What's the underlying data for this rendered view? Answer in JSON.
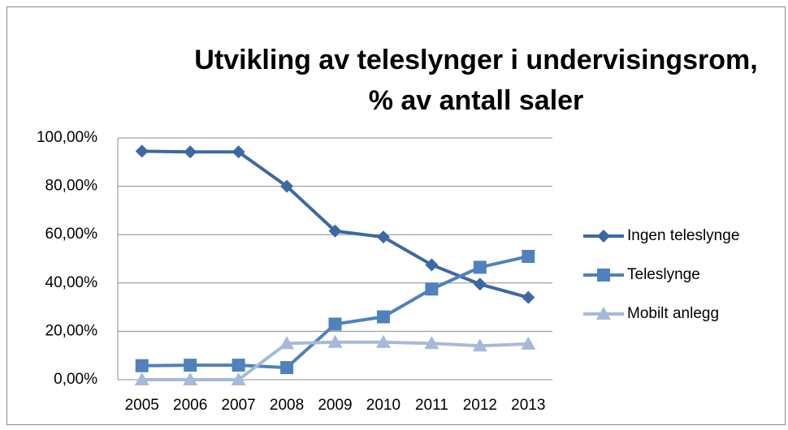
{
  "chart_data": {
    "type": "line",
    "title": [
      "Utvikling av teleslynger i undervisingsrom,",
      "% av antall saler"
    ],
    "categories": [
      "2005",
      "2006",
      "2007",
      "2008",
      "2009",
      "2010",
      "2011",
      "2012",
      "2013"
    ],
    "series": [
      {
        "name": "Ingen teleslynge",
        "color": "#3c69a3",
        "marker": "diamond",
        "values": [
          94.5,
          94.2,
          94.2,
          80,
          61.5,
          59,
          47.5,
          39.5,
          34
        ]
      },
      {
        "name": "Teleslynge",
        "color": "#4f81bd",
        "marker": "square",
        "values": [
          5.8,
          6,
          6,
          5,
          23,
          26,
          37.5,
          46.5,
          51
        ]
      },
      {
        "name": "Mobilt anlegg",
        "color": "#a7b9da",
        "marker": "triangle",
        "values": [
          0,
          0,
          0,
          15,
          15.5,
          15.5,
          15,
          14,
          14.8
        ]
      }
    ],
    "ylim": [
      0,
      100
    ],
    "yticks": [
      {
        "value": 0,
        "label": "0,00%"
      },
      {
        "value": 20,
        "label": "20,00%"
      },
      {
        "value": 40,
        "label": "40,00%"
      },
      {
        "value": 60,
        "label": "60,00%"
      },
      {
        "value": 80,
        "label": "80,00%"
      },
      {
        "value": 100,
        "label": "100,00%"
      }
    ],
    "grid": true,
    "legend": "right"
  }
}
